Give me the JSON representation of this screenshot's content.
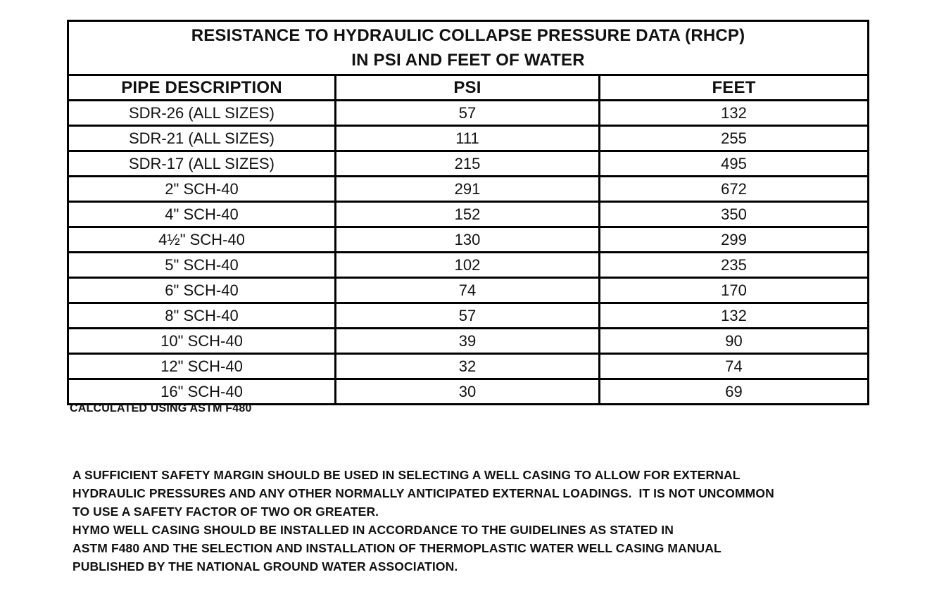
{
  "document": {
    "title_line1": "RESISTANCE TO HYDRAULIC COLLAPSE PRESSURE DATA (RHCP)",
    "title_line2": "IN PSI AND FEET OF WATER",
    "footnote": "CALCULATED USING ASTM F480"
  },
  "table": {
    "columns": [
      "PIPE DESCRIPTION",
      "PSI",
      "FEET"
    ],
    "rows": [
      [
        "SDR-26 (ALL SIZES)",
        "57",
        "132"
      ],
      [
        "SDR-21 (ALL SIZES)",
        "111",
        "255"
      ],
      [
        "SDR-17 (ALL SIZES)",
        "215",
        "495"
      ],
      [
        "2\" SCH-40",
        "291",
        "672"
      ],
      [
        "4\" SCH-40",
        "152",
        "350"
      ],
      [
        "4½\" SCH-40",
        "130",
        "299"
      ],
      [
        "5\" SCH-40",
        "102",
        "235"
      ],
      [
        "6\" SCH-40",
        "74",
        "170"
      ],
      [
        "8\" SCH-40",
        "57",
        "132"
      ],
      [
        "10\" SCH-40",
        "39",
        "90"
      ],
      [
        "12\" SCH-40",
        "32",
        "74"
      ],
      [
        "16\" SCH-40",
        "30",
        "69"
      ]
    ]
  },
  "notes": {
    "lines": [
      "A SUFFICIENT SAFETY MARGIN SHOULD BE USED IN SELECTING A WELL CASING TO ALLOW FOR EXTERNAL",
      "HYDRAULIC PRESSURES AND ANY OTHER NORMALLY ANTICIPATED EXTERNAL LOADINGS.  IT IS NOT UNCOMMON",
      "TO USE A SAFETY FACTOR OF TWO OR GREATER.",
      "HYMO WELL CASING SHOULD BE INSTALLED IN ACCORDANCE TO THE GUIDELINES AS STATED IN",
      "ASTM F480 AND THE SELECTION AND INSTALLATION OF THERMOPLASTIC WATER WELL CASING MANUAL",
      "PUBLISHED BY THE NATIONAL GROUND WATER ASSOCIATION."
    ]
  },
  "colors": {
    "background": "#ffffff",
    "text": "#111111",
    "border": "#000000"
  }
}
